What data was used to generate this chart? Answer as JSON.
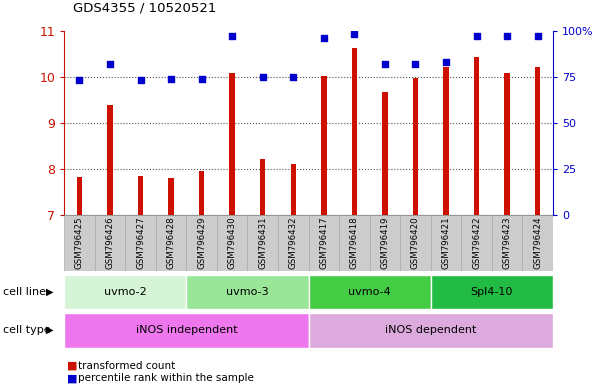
{
  "title": "GDS4355 / 10520521",
  "samples": [
    "GSM796425",
    "GSM796426",
    "GSM796427",
    "GSM796428",
    "GSM796429",
    "GSM796430",
    "GSM796431",
    "GSM796432",
    "GSM796417",
    "GSM796418",
    "GSM796419",
    "GSM796420",
    "GSM796421",
    "GSM796422",
    "GSM796423",
    "GSM796424"
  ],
  "transformed_count": [
    7.82,
    9.38,
    7.85,
    7.8,
    7.95,
    10.08,
    8.22,
    8.1,
    10.02,
    10.62,
    9.67,
    9.97,
    10.22,
    10.42,
    10.09,
    10.22
  ],
  "percentile_rank": [
    73,
    82,
    73,
    74,
    74,
    97,
    75,
    75,
    96,
    98,
    82,
    82,
    83,
    97,
    97,
    97
  ],
  "cell_line_groups": [
    {
      "label": "uvmo-2",
      "start": 0,
      "end": 4,
      "color": "#d6f5d6"
    },
    {
      "label": "uvmo-3",
      "start": 4,
      "end": 8,
      "color": "#99e699"
    },
    {
      "label": "uvmo-4",
      "start": 8,
      "end": 12,
      "color": "#44cc44"
    },
    {
      "label": "Spl4-10",
      "start": 12,
      "end": 16,
      "color": "#22bb44"
    }
  ],
  "cell_type_groups": [
    {
      "label": "iNOS independent",
      "start": 0,
      "end": 8,
      "color": "#ee77ee"
    },
    {
      "label": "iNOS dependent",
      "start": 8,
      "end": 16,
      "color": "#ddaadd"
    }
  ],
  "ylim_left": [
    7,
    11
  ],
  "ylim_right": [
    0,
    100
  ],
  "yticks_left": [
    7,
    8,
    9,
    10,
    11
  ],
  "yticks_right": [
    0,
    25,
    50,
    75,
    100
  ],
  "yticklabels_right": [
    "0",
    "25",
    "50",
    "75",
    "100%"
  ],
  "bar_color": "#cc1100",
  "dot_color": "#0000cc",
  "grid_color": "#555555",
  "axis_color_left": "#cc1100",
  "axis_color_right": "#0000cc",
  "background_color": "#ffffff",
  "label_cell_line": "cell line",
  "label_cell_type": "cell type",
  "legend_bar": "transformed count",
  "legend_dot": "percentile rank within the sample",
  "xlabel_box_color": "#cccccc",
  "xlabel_box_edge": "#aaaaaa"
}
